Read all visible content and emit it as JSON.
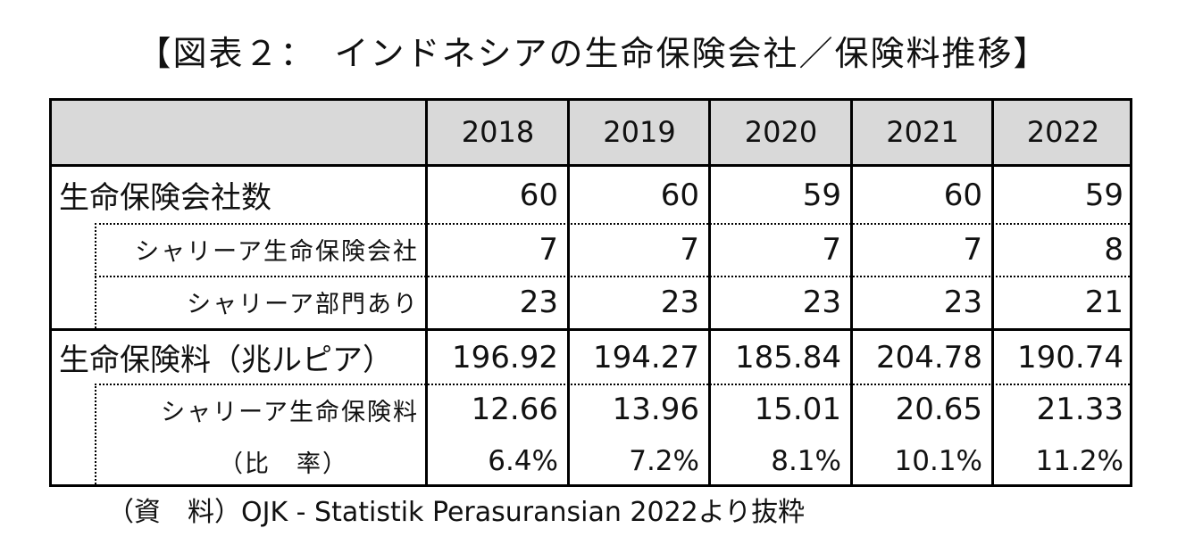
{
  "title": "【図表２：　インドネシアの生命保険会社／保険料推移】",
  "table": {
    "years": [
      "2018",
      "2019",
      "2020",
      "2021",
      "2022"
    ],
    "rows": [
      {
        "label": "生命保険会社数",
        "values": [
          "60",
          "60",
          "59",
          "60",
          "59"
        ]
      },
      {
        "label": "シャリーア生命保険会社",
        "values": [
          "7",
          "7",
          "7",
          "7",
          "8"
        ]
      },
      {
        "label": "シャリーア部門あり",
        "values": [
          "23",
          "23",
          "23",
          "23",
          "21"
        ]
      },
      {
        "label": "生命保険料（兆ルピア）",
        "values": [
          "196.92",
          "194.27",
          "185.84",
          "204.78",
          "190.74"
        ]
      },
      {
        "label": "シャリーア生命保険料",
        "values": [
          "12.66",
          "13.96",
          "15.01",
          "20.65",
          "21.33"
        ]
      },
      {
        "label": "（比　率）",
        "values": [
          "6.4%",
          "7.2%",
          "8.1%",
          "10.1%",
          "11.2%"
        ]
      }
    ]
  },
  "note": "（資　料）OJK - Statistik Perasuransian 2022より抜粋"
}
